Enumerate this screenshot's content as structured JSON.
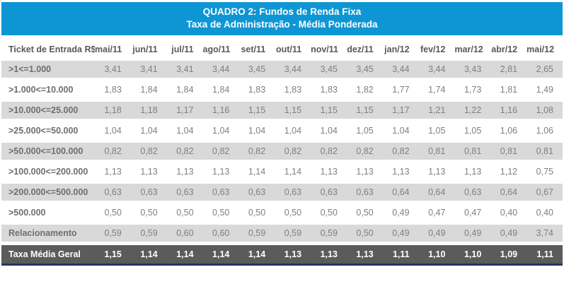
{
  "banner": {
    "line1": "QUADRO 2: Fundos de Renda Fixa",
    "line2": "Taxa de Administração - Média Ponderada"
  },
  "colors": {
    "banner_bg": "#0E96D4",
    "banner_text": "#FFFFFF",
    "stripe_gray": "#D9D9D9",
    "total_row_bg": "#5B5B5B",
    "bottom_line_navy": "#1F3864",
    "header_text": "#595959",
    "value_text": "#7F7F7F"
  },
  "chart_data": {
    "type": "table",
    "title": "QUADRO 2: Fundos de Renda Fixa",
    "subtitle": "Taxa de Administração - Média Ponderada",
    "columns": [
      "Ticket de Entrada R$",
      "mai/11",
      "jun/11",
      "jul/11",
      "ago/11",
      "set/11",
      "out/11",
      "nov/11",
      "dez/11",
      "jan/12",
      "fev/12",
      "mar/12",
      "abr/12",
      "mai/12"
    ],
    "rows": [
      {
        "label": ">1<=1.000",
        "values": [
          "3,41",
          "3,41",
          "3,41",
          "3,44",
          "3,45",
          "3,44",
          "3,45",
          "3,45",
          "3,44",
          "3,44",
          "3,43",
          "2,81",
          "2,65"
        ]
      },
      {
        "label": ">1.000<=10.000",
        "values": [
          "1,83",
          "1,84",
          "1,84",
          "1,84",
          "1,83",
          "1,83",
          "1,83",
          "1,82",
          "1,77",
          "1,74",
          "1,73",
          "1,81",
          "1,49"
        ]
      },
      {
        "label": ">10.000<=25.000",
        "values": [
          "1,18",
          "1,18",
          "1,17",
          "1,16",
          "1,15",
          "1,15",
          "1,15",
          "1,15",
          "1,17",
          "1,21",
          "1,22",
          "1,16",
          "1,08"
        ]
      },
      {
        "label": ">25.000<=50.000",
        "values": [
          "1,04",
          "1,04",
          "1,04",
          "1,04",
          "1,04",
          "1,04",
          "1,04",
          "1,05",
          "1,04",
          "1,05",
          "1,05",
          "1,06",
          "1,06"
        ]
      },
      {
        "label": ">50.000<=100.000",
        "values": [
          "0,82",
          "0,82",
          "0,82",
          "0,82",
          "0,82",
          "0,82",
          "0,82",
          "0,82",
          "0,82",
          "0,81",
          "0,81",
          "0,81",
          "0,81"
        ]
      },
      {
        "label": ">100.000<=200.000",
        "values": [
          "1,13",
          "1,13",
          "1,13",
          "1,13",
          "1,14",
          "1,14",
          "1,13",
          "1,13",
          "1,13",
          "1,13",
          "1,13",
          "1,12",
          "0,75"
        ]
      },
      {
        "label": ">200.000<=500.000",
        "values": [
          "0,63",
          "0,63",
          "0,63",
          "0,63",
          "0,63",
          "0,63",
          "0,63",
          "0,63",
          "0,64",
          "0,64",
          "0,63",
          "0,64",
          "0,67"
        ]
      },
      {
        "label": ">500.000",
        "values": [
          "0,50",
          "0,50",
          "0,50",
          "0,50",
          "0,50",
          "0,50",
          "0,50",
          "0,50",
          "0,49",
          "0,47",
          "0,47",
          "0,40",
          "0,40"
        ]
      },
      {
        "label": "Relacionamento",
        "values": [
          "0,59",
          "0,59",
          "0,60",
          "0,60",
          "0,59",
          "0,59",
          "0,59",
          "0,50",
          "0,49",
          "0,49",
          "0,49",
          "0,49",
          "3,74"
        ]
      }
    ],
    "total_row": {
      "label": "Taxa Média Geral",
      "values": [
        "1,15",
        "1,14",
        "1,14",
        "1,14",
        "1,14",
        "1,13",
        "1,13",
        "1,13",
        "1,11",
        "1,10",
        "1,10",
        "1,09",
        "1,11"
      ]
    }
  }
}
